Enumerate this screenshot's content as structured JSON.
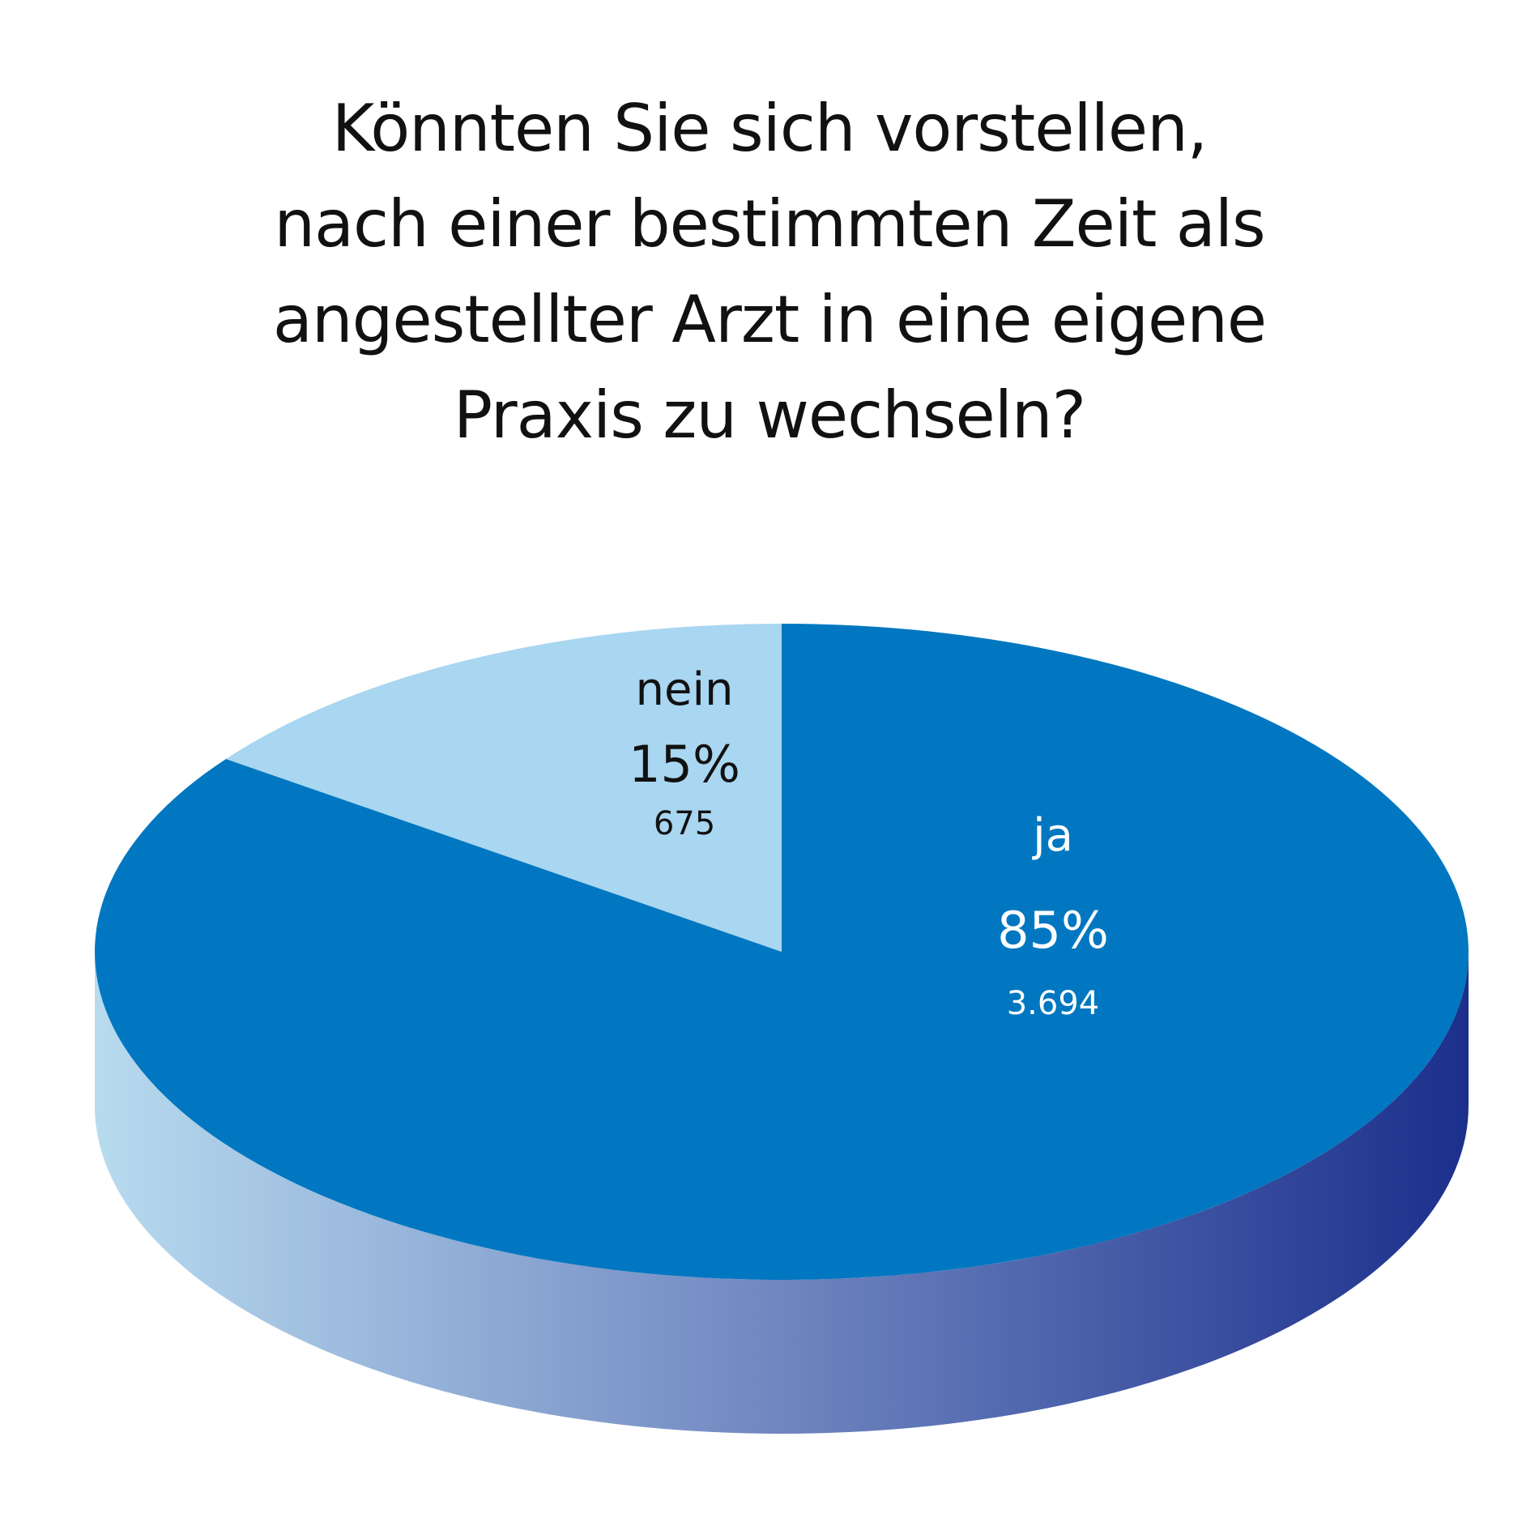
{
  "chart_data": {
    "type": "pie",
    "title_lines": [
      "Könnten Sie sich vorstellen,",
      "nach einer bestimmten Zeit als",
      "angestellter Arzt in eine eigene",
      "Praxis zu wechseln?"
    ],
    "slices": [
      {
        "label": "ja",
        "percent_text": "85%",
        "percent": 85,
        "count_text": "3.694",
        "count": 3694,
        "color": "#0077c0",
        "text_color": "#ffffff"
      },
      {
        "label": "nein",
        "percent_text": "15%",
        "percent": 15,
        "count_text": "675",
        "count": 675,
        "color": "#a9d6f0",
        "text_color": "#111111"
      }
    ],
    "style": "3d",
    "legend": "none",
    "side_gradient": [
      "#b8dbef",
      "#6f86c0",
      "#1b2f8c"
    ]
  }
}
